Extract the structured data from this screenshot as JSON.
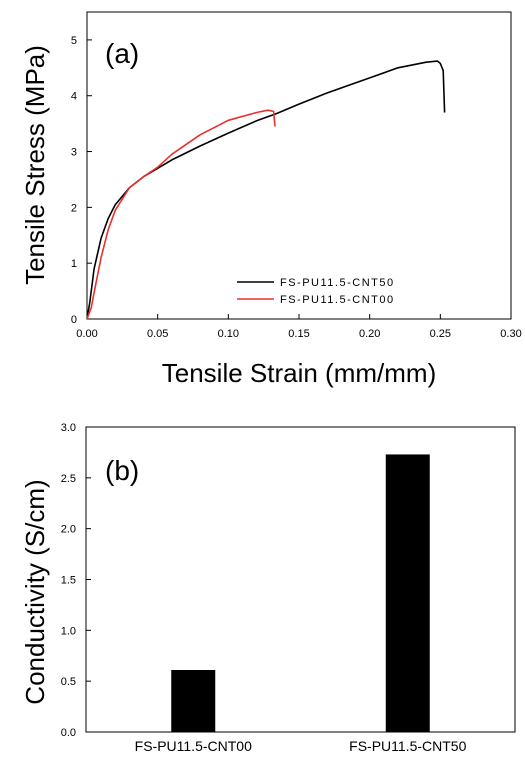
{
  "chart_data": [
    {
      "panel": "(a)",
      "type": "line",
      "xlabel": "Tensile Strain (mm/mm)",
      "ylabel": "Tensile Stress (MPa)",
      "xlim": [
        0.0,
        0.3
      ],
      "ylim": [
        0,
        5.5
      ],
      "xticks": [
        "0.00",
        "0.05",
        "0.10",
        "0.15",
        "0.20",
        "0.25",
        "0.30"
      ],
      "yticks": [
        "0",
        "1",
        "2",
        "3",
        "4",
        "5"
      ],
      "legend_position": "bottom-right",
      "series": [
        {
          "name": "FS-PU11.5-CNT50",
          "color": "#000000",
          "x": [
            0.0,
            0.002,
            0.005,
            0.01,
            0.015,
            0.02,
            0.03,
            0.04,
            0.05,
            0.06,
            0.08,
            0.1,
            0.12,
            0.134,
            0.15,
            0.17,
            0.2,
            0.22,
            0.24,
            0.248,
            0.25,
            0.252,
            0.253
          ],
          "y": [
            0.0,
            0.3,
            0.9,
            1.45,
            1.8,
            2.05,
            2.35,
            2.55,
            2.7,
            2.85,
            3.1,
            3.33,
            3.55,
            3.68,
            3.85,
            4.05,
            4.32,
            4.5,
            4.6,
            4.62,
            4.58,
            4.45,
            3.7
          ]
        },
        {
          "name": "FS-PU11.5-CNT00",
          "color": "#e8312d",
          "x": [
            0.0,
            0.003,
            0.006,
            0.01,
            0.015,
            0.02,
            0.03,
            0.04,
            0.05,
            0.06,
            0.08,
            0.1,
            0.12,
            0.128,
            0.132,
            0.133
          ],
          "y": [
            0.0,
            0.2,
            0.6,
            1.1,
            1.6,
            1.95,
            2.35,
            2.55,
            2.72,
            2.95,
            3.3,
            3.56,
            3.7,
            3.74,
            3.72,
            3.45
          ]
        }
      ]
    },
    {
      "panel": "(b)",
      "type": "bar",
      "ylabel": "Conductivity (S/cm)",
      "xlabel": "",
      "ylim": [
        0.0,
        3.0
      ],
      "yticks": [
        "0.0",
        "0.5",
        "1.0",
        "1.5",
        "2.0",
        "2.5",
        "3.0"
      ],
      "categories": [
        "FS-PU11.5-CNT00",
        "FS-PU11.5-CNT50"
      ],
      "values": [
        0.61,
        2.73
      ],
      "bar_color": "#000000"
    }
  ]
}
